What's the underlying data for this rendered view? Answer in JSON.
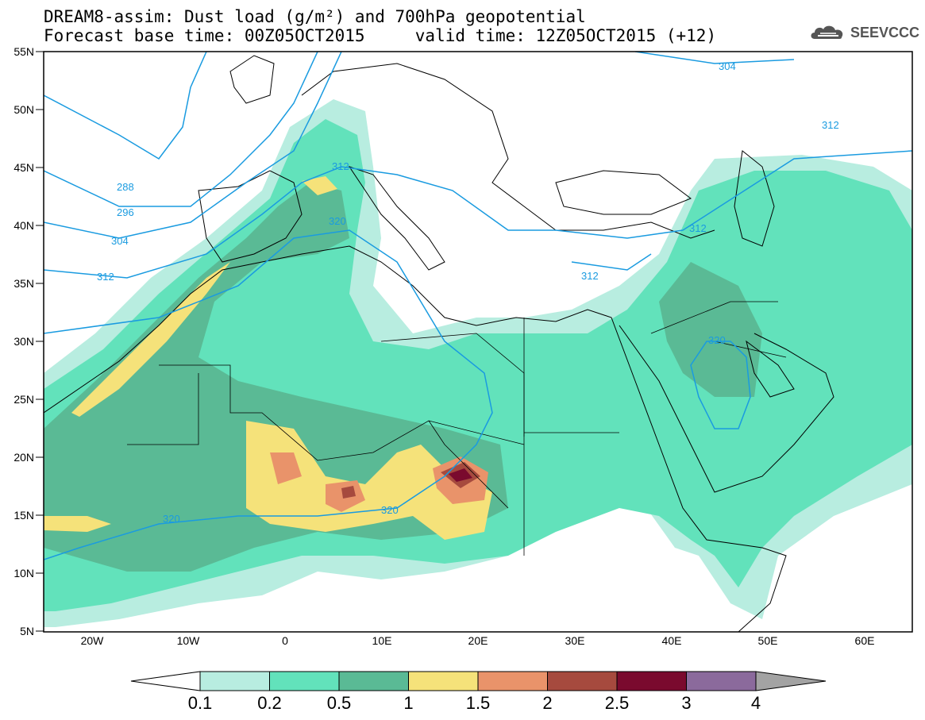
{
  "title": {
    "line1": "DREAM8-assim: Dust load (g/m²) and 700hPa geopotential",
    "line2": "Forecast base time: 00Z05OCT2015     valid time: 12Z05OCT2015 (+12)"
  },
  "logo": {
    "text": "SEEVCCC",
    "icon": "cloud-icon"
  },
  "map": {
    "lat_labels": [
      "55N",
      "50N",
      "45N",
      "40N",
      "35N",
      "30N",
      "25N",
      "20N",
      "15N",
      "10N",
      "5N"
    ],
    "lon_labels": [
      "20W",
      "10W",
      "0",
      "10E",
      "20E",
      "30E",
      "40E",
      "50E",
      "60E"
    ],
    "lon_range": [
      -25,
      65
    ],
    "lat_range": [
      5,
      55
    ]
  },
  "contours": {
    "labels": [
      "304",
      "312",
      "288",
      "296",
      "304",
      "312",
      "312",
      "320",
      "312",
      "312",
      "320",
      "320",
      "320"
    ]
  },
  "colorbar": {
    "levels": [
      "0.1",
      "0.2",
      "0.5",
      "1",
      "1.5",
      "2",
      "2.5",
      "3",
      "4"
    ],
    "colors": [
      "#b8ede0",
      "#62e2bb",
      "#5aba95",
      "#f5e27a",
      "#e9936a",
      "#a64a3e",
      "#7a0a2e",
      "#8b6a9c",
      "#a3a3a3"
    ]
  }
}
